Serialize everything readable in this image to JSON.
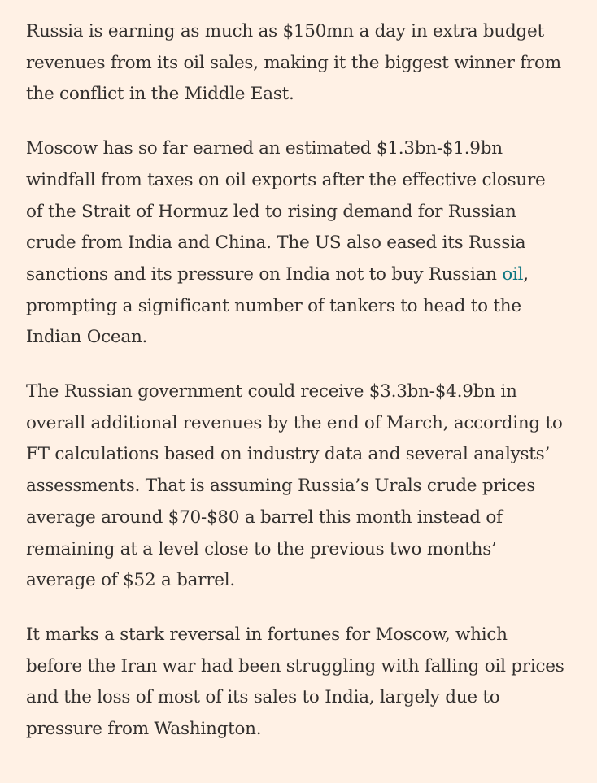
{
  "article": {
    "paragraphs": [
      {
        "lines": [
          "Russia is earning as much as $150mn a day in extra budget",
          "revenues from its oil sales, making it the biggest winner from",
          "the conflict in the Middle East."
        ]
      },
      {
        "lines": [
          "Moscow has so far earned an estimated $1.3bn-$1.9bn",
          "windfall from taxes on oil exports after the effective closure",
          "of the Strait of Hormuz led to rising demand for Russian",
          "crude from India and China. The US also eased its Russia"
        ],
        "link_line": {
          "before": "sanctions and its pressure on India not to buy Russian ",
          "link_text": "oil",
          "after": ","
        },
        "lines_after": [
          "prompting a significant number of tankers to head to the",
          "Indian Ocean."
        ]
      },
      {
        "lines": [
          "The Russian government could receive $3.3bn-$4.9bn in",
          "overall additional revenues by the end of March, according to",
          "FT calculations based on industry data and several analysts’",
          "assessments. That is assuming Russia’s Urals crude prices",
          "average around $70-$80 a barrel this month instead of",
          "remaining at a level close to the previous two months’",
          "average of $52 a barrel."
        ]
      },
      {
        "lines": [
          "It marks a stark reversal in fortunes for Moscow, which",
          "before the Iran war had been struggling with falling oil prices",
          "and the loss of most of its sales to India, largely due to",
          "pressure from Washington."
        ]
      }
    ]
  },
  "colors": {
    "background": "#fff1e5",
    "text": "#33302e",
    "link": "#0d7680"
  }
}
